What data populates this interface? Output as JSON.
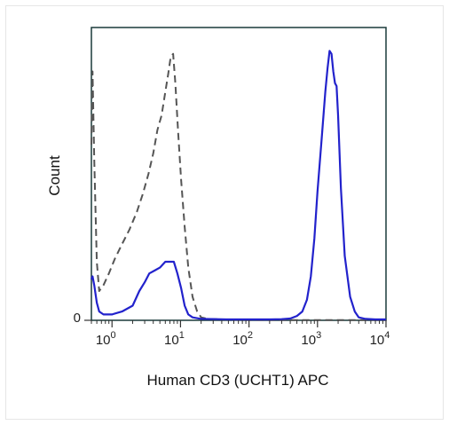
{
  "chart_data": {
    "type": "line",
    "title": "",
    "xlabel": "Human CD3 (UCHT1) APC",
    "ylabel": "Count",
    "x_scale": "log",
    "xlim": [
      0.5,
      10000
    ],
    "ylim": [
      0,
      100
    ],
    "x_ticks": [
      {
        "value": 1,
        "base": "10",
        "exp": "0"
      },
      {
        "value": 10,
        "base": "10",
        "exp": "1"
      },
      {
        "value": 100,
        "base": "10",
        "exp": "2"
      },
      {
        "value": 1000,
        "base": "10",
        "exp": "3"
      },
      {
        "value": 10000,
        "base": "10",
        "exp": "4"
      }
    ],
    "y_ticks": [
      {
        "value": 0,
        "label": "0"
      }
    ],
    "grid": false,
    "series": [
      {
        "style": "dashed",
        "color": "#555555",
        "x": [
          0.5,
          0.52,
          0.55,
          0.6,
          0.65,
          0.75,
          0.9,
          1.1,
          1.4,
          1.8,
          2.3,
          2.8,
          3.4,
          4.0,
          4.6,
          5.3,
          6.0,
          6.6,
          7.2,
          7.8,
          8.4,
          9.2,
          10.2,
          11.5,
          13.0,
          15.0,
          17.5,
          20.0,
          25.0,
          50.0,
          100.0,
          1000.0,
          10000.0
        ],
        "values": [
          60,
          85,
          55,
          20,
          10,
          12,
          16,
          21,
          26,
          31,
          37,
          43,
          50,
          57,
          65,
          70,
          78,
          84,
          90,
          91,
          81,
          65,
          48,
          32,
          18,
          8,
          3,
          1,
          0.5,
          0.2,
          0.1,
          0.1,
          0.1
        ]
      },
      {
        "style": "solid",
        "color": "#2222cc",
        "x": [
          0.5,
          0.52,
          0.55,
          0.6,
          0.65,
          0.75,
          1.0,
          1.4,
          2.0,
          2.5,
          3.0,
          3.5,
          4.2,
          5.0,
          6.0,
          7.0,
          8.0,
          9.0,
          10.2,
          11.5,
          13.0,
          15.0,
          20.0,
          50.0,
          100.0,
          200.0,
          300.0,
          400.0,
          500.0,
          600.0,
          700.0,
          800.0,
          900.0,
          1000.0,
          1150.0,
          1300.0,
          1400.0,
          1500.0,
          1600.0,
          1700.0,
          1800.0,
          1900.0,
          2000.0,
          2200.0,
          2500.0,
          3000.0,
          3500.0,
          4000.0,
          5000.0,
          7000.0,
          10000.0
        ],
        "values": [
          14,
          15,
          12,
          6,
          3,
          2,
          2,
          3,
          5,
          10,
          13,
          16,
          17,
          18,
          20,
          20,
          20,
          16,
          11,
          5,
          2,
          1,
          0.5,
          0.3,
          0.3,
          0.3,
          0.4,
          0.6,
          1.5,
          3,
          7,
          15,
          28,
          44,
          62,
          78,
          86,
          92,
          91,
          85,
          81,
          80,
          70,
          45,
          22,
          8,
          3,
          1,
          0.5,
          0.3,
          0.3
        ]
      }
    ]
  }
}
